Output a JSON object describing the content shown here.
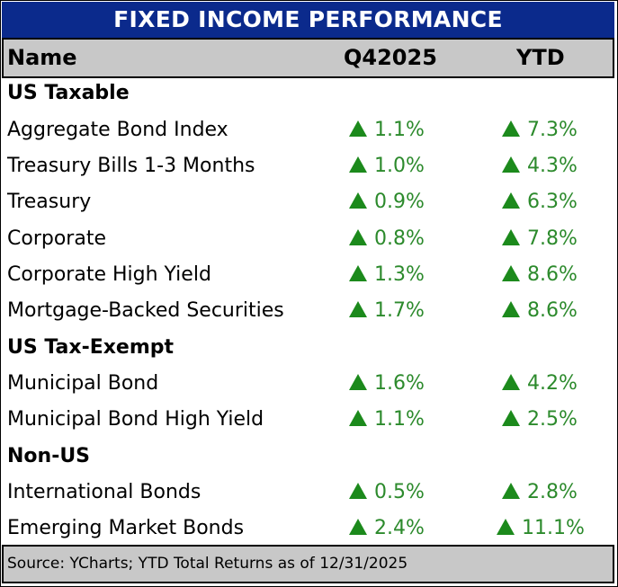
{
  "title": "FIXED INCOME PERFORMANCE",
  "columns": {
    "name": "Name",
    "q": "Q42025",
    "ytd": "YTD"
  },
  "colors": {
    "header_bg": "#0b2a8c",
    "grey": "#c8c8c8",
    "up": "#2c8a2c"
  },
  "sections": [
    {
      "label": "US Taxable"
    },
    {
      "label": "US Tax-Exempt"
    },
    {
      "label": "Non-US"
    }
  ],
  "rows": [
    {
      "name": "Aggregate Bond Index",
      "q": "1.1%",
      "ytd": "7.3%",
      "dir": "up"
    },
    {
      "name": "Treasury Bills 1-3 Months",
      "q": "1.0%",
      "ytd": "4.3%",
      "dir": "up"
    },
    {
      "name": "Treasury",
      "q": "0.9%",
      "ytd": "6.3%",
      "dir": "up"
    },
    {
      "name": "Corporate",
      "q": "0.8%",
      "ytd": "7.8%",
      "dir": "up"
    },
    {
      "name": "Corporate High Yield",
      "q": "1.3%",
      "ytd": "8.6%",
      "dir": "up"
    },
    {
      "name": "Mortgage-Backed Securities",
      "q": "1.7%",
      "ytd": "8.6%",
      "dir": "up"
    },
    {
      "name": "Municipal Bond",
      "q": "1.6%",
      "ytd": "4.2%",
      "dir": "up"
    },
    {
      "name": "Municipal Bond High Yield",
      "q": "1.1%",
      "ytd": "2.5%",
      "dir": "up"
    },
    {
      "name": "International Bonds",
      "q": "0.5%",
      "ytd": "2.8%",
      "dir": "up"
    },
    {
      "name": "Emerging Market Bonds",
      "q": "2.4%",
      "ytd": "11.1%",
      "dir": "up"
    }
  ],
  "footer": "Source: YCharts; YTD Total Returns as of 12/31/2025"
}
